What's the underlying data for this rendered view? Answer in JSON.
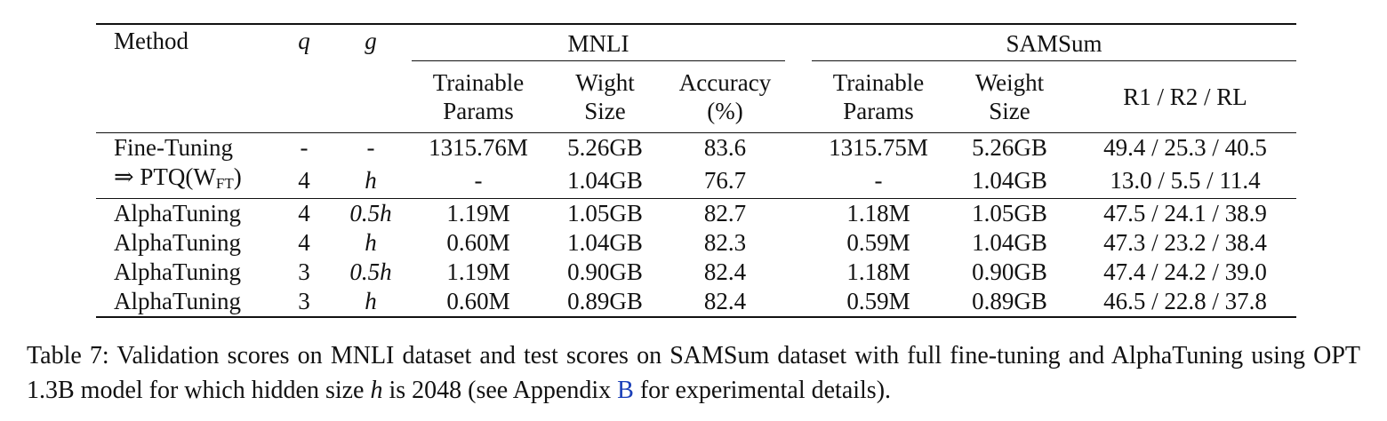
{
  "header": {
    "method": "Method",
    "q": "q",
    "g": "g",
    "group_mnli": "MNLI",
    "group_samsum": "SAMSum",
    "mnli_cols": [
      {
        "line1": "Trainable",
        "line2": "Params"
      },
      {
        "line1": "Wight",
        "line2": "Size"
      },
      {
        "line1": "Accuracy",
        "line2": "(%)"
      }
    ],
    "samsum_cols": [
      {
        "line1": "Trainable",
        "line2": "Params"
      },
      {
        "line1": "Weight",
        "line2": "Size"
      },
      {
        "line1": "R1 / R2 / RL",
        "line2": ""
      }
    ]
  },
  "rows": [
    {
      "method": "Fine-Tuning",
      "q": "-",
      "g": "-",
      "mnli_params": "1315.76M",
      "mnli_size": "5.26GB",
      "mnli_acc": "83.6",
      "sam_params": "1315.75M",
      "sam_size": "5.26GB",
      "sam_rouge": "49.4 / 25.3 / 40.5"
    },
    {
      "method_prefix": "⇒ PTQ(W",
      "method_sub": "FT",
      "method_suffix": ")",
      "q": "4",
      "g": "h",
      "mnli_params": "-",
      "mnli_size": "1.04GB",
      "mnli_acc": "76.7",
      "sam_params": "-",
      "sam_size": "1.04GB",
      "sam_rouge": "13.0 / 5.5 / 11.4"
    },
    {
      "method": "AlphaTuning",
      "q": "4",
      "g": "0.5h",
      "mnli_params": "1.19M",
      "mnli_size": "1.05GB",
      "mnli_acc": "82.7",
      "sam_params": "1.18M",
      "sam_size": "1.05GB",
      "sam_rouge": "47.5 / 24.1 / 38.9"
    },
    {
      "method": "AlphaTuning",
      "q": "4",
      "g": "h",
      "mnli_params": "0.60M",
      "mnli_size": "1.04GB",
      "mnli_acc": "82.3",
      "sam_params": "0.59M",
      "sam_size": "1.04GB",
      "sam_rouge": "47.3 / 23.2 / 38.4"
    },
    {
      "method": "AlphaTuning",
      "q": "3",
      "g": "0.5h",
      "mnli_params": "1.19M",
      "mnli_size": "0.90GB",
      "mnli_acc": "82.4",
      "sam_params": "1.18M",
      "sam_size": "0.90GB",
      "sam_rouge": "47.4 / 24.2 / 39.0"
    },
    {
      "method": "AlphaTuning",
      "q": "3",
      "g": "h",
      "mnli_params": "0.60M",
      "mnli_size": "0.89GB",
      "mnli_acc": "82.4",
      "sam_params": "0.59M",
      "sam_size": "0.89GB",
      "sam_rouge": "46.5 / 22.8 / 37.8"
    }
  ],
  "caption": {
    "part1": "Table 7: Validation scores on MNLI dataset and test scores on SAMSum dataset with full fine-tuning and AlphaTuning using OPT 1.3B model for which hidden size ",
    "h": "h",
    "part2": " is 2048 (see Appendix ",
    "link": "B",
    "part3": " for experimental details)."
  }
}
